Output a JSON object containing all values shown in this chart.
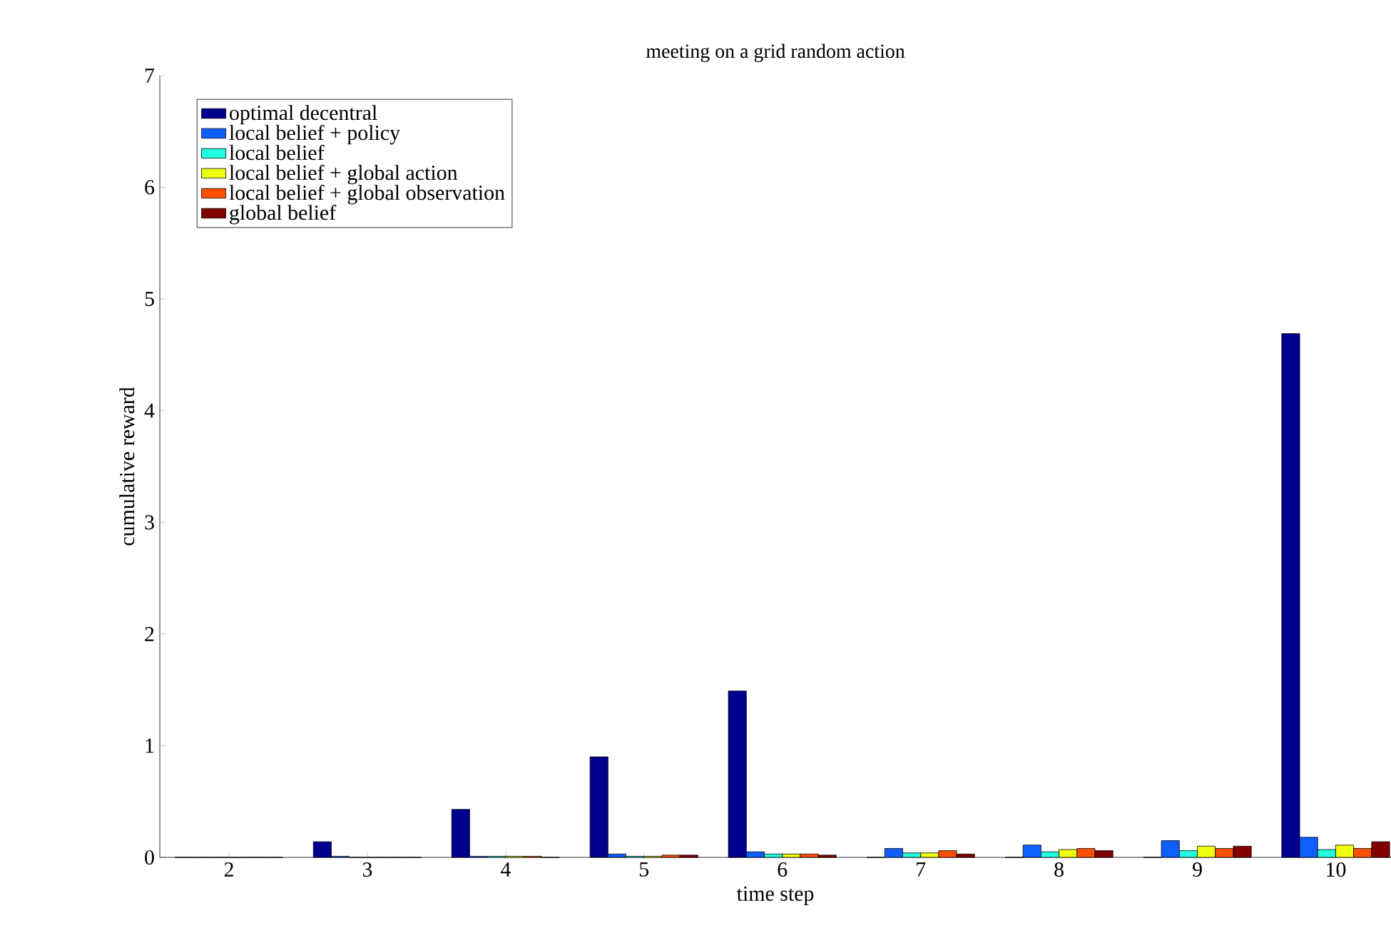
{
  "chart_data": {
    "type": "bar",
    "title": "meeting on a grid random action",
    "xlabel": "time step",
    "ylabel": "cumulative reward",
    "x": [
      2,
      3,
      4,
      5,
      6,
      7,
      8,
      9,
      10
    ],
    "series": [
      {
        "name": "optimal decentral",
        "color": "#00008f",
        "values": [
          0,
          0.14,
          0.43,
          0.9,
          1.49,
          0,
          0,
          0,
          4.69
        ]
      },
      {
        "name": "local belief + policy",
        "color": "#0f5fff",
        "values": [
          0,
          0.01,
          0.01,
          0.03,
          0.05,
          0.08,
          0.11,
          0.15,
          0.18
        ]
      },
      {
        "name": "local belief",
        "color": "#20ffdf",
        "values": [
          0,
          0,
          0.01,
          0.01,
          0.03,
          0.04,
          0.05,
          0.06,
          0.07
        ]
      },
      {
        "name": "local belief + global action",
        "color": "#efff10",
        "values": [
          0,
          0,
          0.01,
          0.01,
          0.03,
          0.04,
          0.07,
          0.1,
          0.11
        ]
      },
      {
        "name": "local belief + global observation",
        "color": "#ff4f00",
        "values": [
          0,
          0,
          0.01,
          0.02,
          0.03,
          0.06,
          0.08,
          0.08,
          0.08
        ]
      },
      {
        "name": "global belief",
        "color": "#800000",
        "values": [
          0,
          0,
          0,
          0.02,
          0.02,
          0.03,
          0.06,
          0.1,
          0.14
        ]
      }
    ],
    "xlim": [
      1.5,
      10.4
    ],
    "ylim": [
      0,
      7
    ],
    "xticks": [
      2,
      3,
      4,
      5,
      6,
      7,
      8,
      9,
      10
    ],
    "yticks": [
      0,
      1,
      2,
      3,
      4,
      5,
      6,
      7
    ],
    "legend": "top left",
    "grid": false
  }
}
